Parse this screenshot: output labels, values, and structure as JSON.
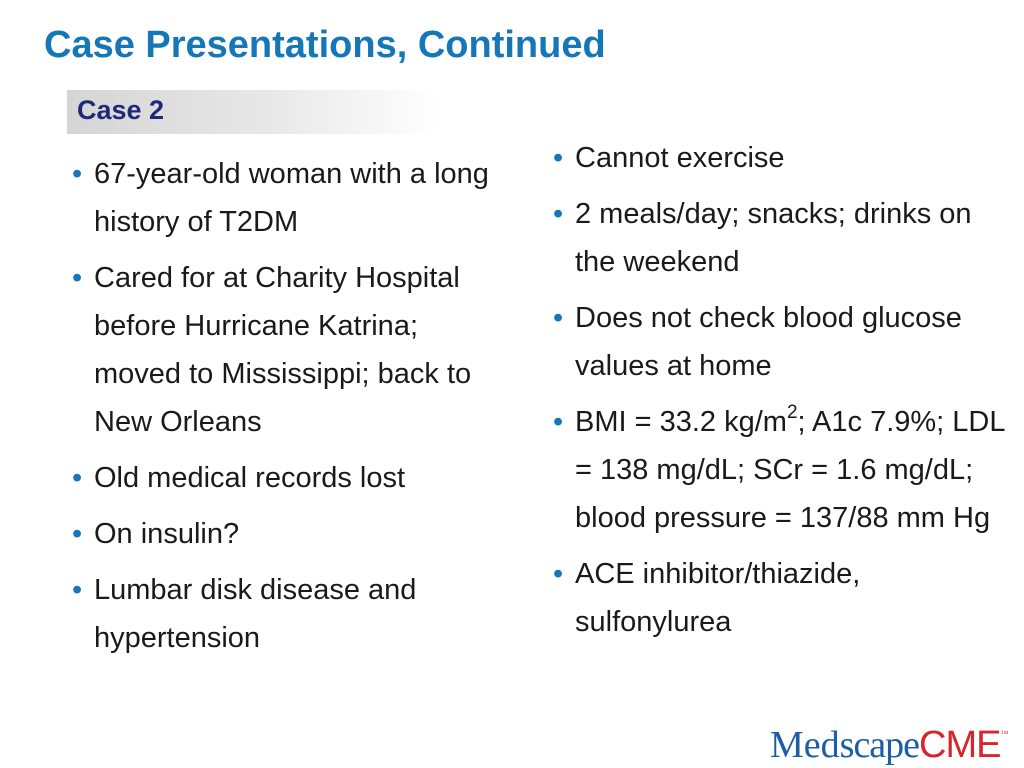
{
  "slide": {
    "title": "Case Presentations, Continued",
    "case_label": "Case 2"
  },
  "left_bullets": [
    "67-year-old woman with a long history of T2DM",
    "Cared for at Charity Hospital before Hurricane Katrina; moved to Mississippi; back to New Orleans",
    "Old medical records lost",
    "On insulin?",
    "Lumbar disk disease and hypertension"
  ],
  "right_bullets": {
    "item1": "Cannot exercise",
    "item2": "2 meals/day; snacks; drinks on the weekend",
    "item3": "Does not check blood glucose values at home",
    "item4_pre": "BMI = 33.2 kg/m",
    "item4_sup": "2",
    "item4_post": "; A1c 7.9%; LDL = 138 mg/dL; SCr = 1.6 mg/dL; blood pressure = 137/88 mm Hg",
    "item5": "ACE inhibitor/thiazide, sulfonylurea"
  },
  "bullet_glyph": "•",
  "logo": {
    "part1": "Med",
    "part2": "scape",
    "part3": "CME",
    "tm": "™"
  },
  "colors": {
    "title": "#1677b8",
    "case_label_text": "#1d2a78",
    "bullet": "#1677b8",
    "logo_blue": "#1a5fa8",
    "logo_red": "#d6262c"
  }
}
